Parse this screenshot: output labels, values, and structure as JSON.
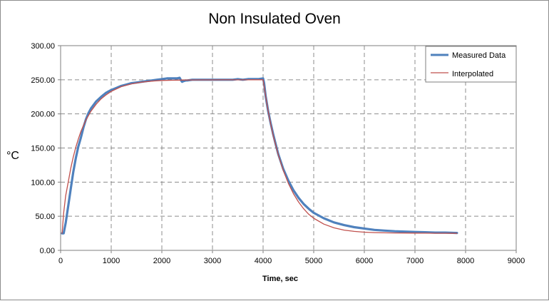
{
  "chart_data": {
    "type": "line",
    "title": "Non Insulated Oven",
    "xlabel": "Time, sec",
    "ylabel": "°C",
    "xlim": [
      0,
      9000
    ],
    "ylim": [
      0,
      300
    ],
    "x_ticks": [
      0,
      1000,
      2000,
      3000,
      4000,
      5000,
      6000,
      7000,
      8000,
      9000
    ],
    "y_ticks": [
      0,
      50,
      100,
      150,
      200,
      250,
      300
    ],
    "y_tick_labels": [
      "0.00",
      "50.00",
      "100.00",
      "150.00",
      "200.00",
      "250.00",
      "300.00"
    ],
    "grid": true,
    "legend_position": "top-right",
    "series": [
      {
        "name": "Measured Data",
        "color": "#4f81bd",
        "x": [
          30,
          60,
          100,
          150,
          200,
          250,
          300,
          350,
          400,
          450,
          500,
          550,
          600,
          700,
          800,
          900,
          1000,
          1100,
          1200,
          1300,
          1400,
          1500,
          1600,
          1700,
          1800,
          1900,
          2000,
          2100,
          2200,
          2300,
          2350,
          2380,
          2400,
          2430,
          2470,
          2500,
          2600,
          2700,
          2800,
          2900,
          3000,
          3100,
          3200,
          3300,
          3400,
          3500,
          3600,
          3700,
          3800,
          3900,
          4000,
          4020,
          4050,
          4100,
          4150,
          4200,
          4250,
          4300,
          4400,
          4500,
          4600,
          4700,
          4800,
          4900,
          5000,
          5200,
          5400,
          5600,
          5800,
          6000,
          6200,
          6400,
          6600,
          6800,
          7000,
          7200,
          7400,
          7600,
          7830
        ],
        "y": [
          25,
          25,
          40,
          65,
          90,
          115,
          135,
          152,
          165,
          180,
          192,
          201,
          208,
          218,
          225,
          231,
          235,
          238,
          241,
          243,
          245,
          246,
          247,
          248,
          249,
          250,
          251,
          252,
          252,
          252,
          253,
          249,
          247,
          248,
          249,
          249,
          250,
          250,
          250,
          250,
          250,
          250,
          250,
          250,
          250,
          251,
          250,
          251,
          251,
          251,
          252,
          245,
          226,
          204,
          186,
          170,
          155,
          141,
          119,
          102,
          88,
          77,
          68,
          61,
          55,
          47,
          41,
          37,
          34,
          32,
          30,
          29,
          28,
          27.5,
          27,
          26.5,
          26,
          26,
          25.5
        ]
      },
      {
        "name": "Interpolated",
        "color": "#c0504d",
        "x": [
          30,
          60,
          100,
          150,
          200,
          250,
          300,
          350,
          400,
          450,
          500,
          600,
          700,
          800,
          900,
          1000,
          1200,
          1400,
          1600,
          1800,
          2000,
          2200,
          2400,
          2600,
          2800,
          3000,
          3200,
          3400,
          3600,
          3800,
          4000,
          4050,
          4100,
          4150,
          4200,
          4300,
          4400,
          4500,
          4600,
          4700,
          4800,
          4900,
          5000,
          5200,
          5400,
          5600,
          5800,
          6000,
          6200,
          6400,
          6600,
          6800,
          7000,
          7200,
          7400,
          7600,
          7830
        ],
        "y": [
          25,
          55,
          80,
          100,
          120,
          137,
          151,
          163,
          174,
          183,
          191,
          204,
          214,
          222,
          228,
          233,
          240,
          244,
          246.5,
          248,
          249,
          249.3,
          249.5,
          249.7,
          249.8,
          249.8,
          249.9,
          249.9,
          249.9,
          250,
          250,
          226,
          204,
          185,
          168,
          140,
          117,
          98,
          83,
          71,
          61,
          53,
          47,
          38.5,
          33,
          29.7,
          27.8,
          26.7,
          26,
          25.7,
          25.5,
          25.4,
          25.3,
          25.2,
          25.1,
          25.1,
          25
        ]
      }
    ]
  }
}
